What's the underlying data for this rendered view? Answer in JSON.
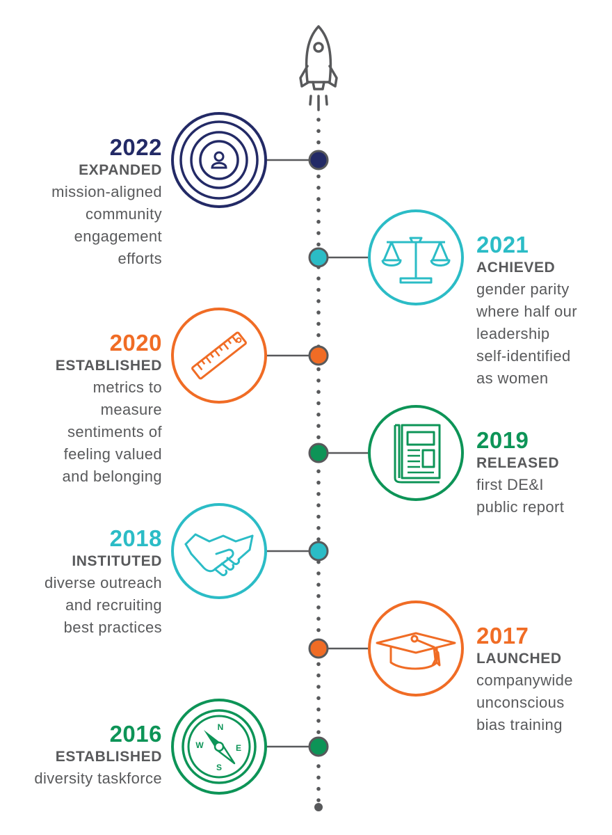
{
  "colors": {
    "navy": "#232a66",
    "teal": "#2bbcc6",
    "orange": "#f06c25",
    "green": "#0d9457",
    "gray": "#58595b"
  },
  "top_icon": "rocket-icon",
  "milestones": [
    {
      "year": "2022",
      "label": "EXPANDED",
      "desc": "mission-aligned\ncommunity\nengagement\nefforts",
      "color": "#232a66",
      "icon": "person-target-icon",
      "side": "left"
    },
    {
      "year": "2021",
      "label": "ACHIEVED",
      "desc": "gender parity\nwhere half our\nleadership\nself-identified\nas women",
      "color": "#2bbcc6",
      "icon": "scales-icon",
      "side": "right"
    },
    {
      "year": "2020",
      "label": "ESTABLISHED",
      "desc": "metrics to\nmeasure\nsentiments of\nfeeling valued\nand belonging",
      "color": "#f06c25",
      "icon": "ruler-icon",
      "side": "left"
    },
    {
      "year": "2019",
      "label": "RELEASED",
      "desc": "first DE&I\npublic report",
      "color": "#0d9457",
      "icon": "report-icon",
      "side": "right"
    },
    {
      "year": "2018",
      "label": "INSTITUTED",
      "desc": "diverse outreach\nand recruiting\nbest practices",
      "color": "#2bbcc6",
      "icon": "handshake-icon",
      "side": "left"
    },
    {
      "year": "2017",
      "label": "LAUNCHED",
      "desc": "companywide\nunconscious\nbias training",
      "color": "#f06c25",
      "icon": "graduation-cap-icon",
      "side": "right"
    },
    {
      "year": "2016",
      "label": "ESTABLISHED",
      "desc": "diversity taskforce",
      "color": "#0d9457",
      "icon": "compass-icon",
      "side": "left"
    }
  ],
  "compass_letters": {
    "n": "N",
    "e": "E",
    "s": "S",
    "w": "W"
  }
}
